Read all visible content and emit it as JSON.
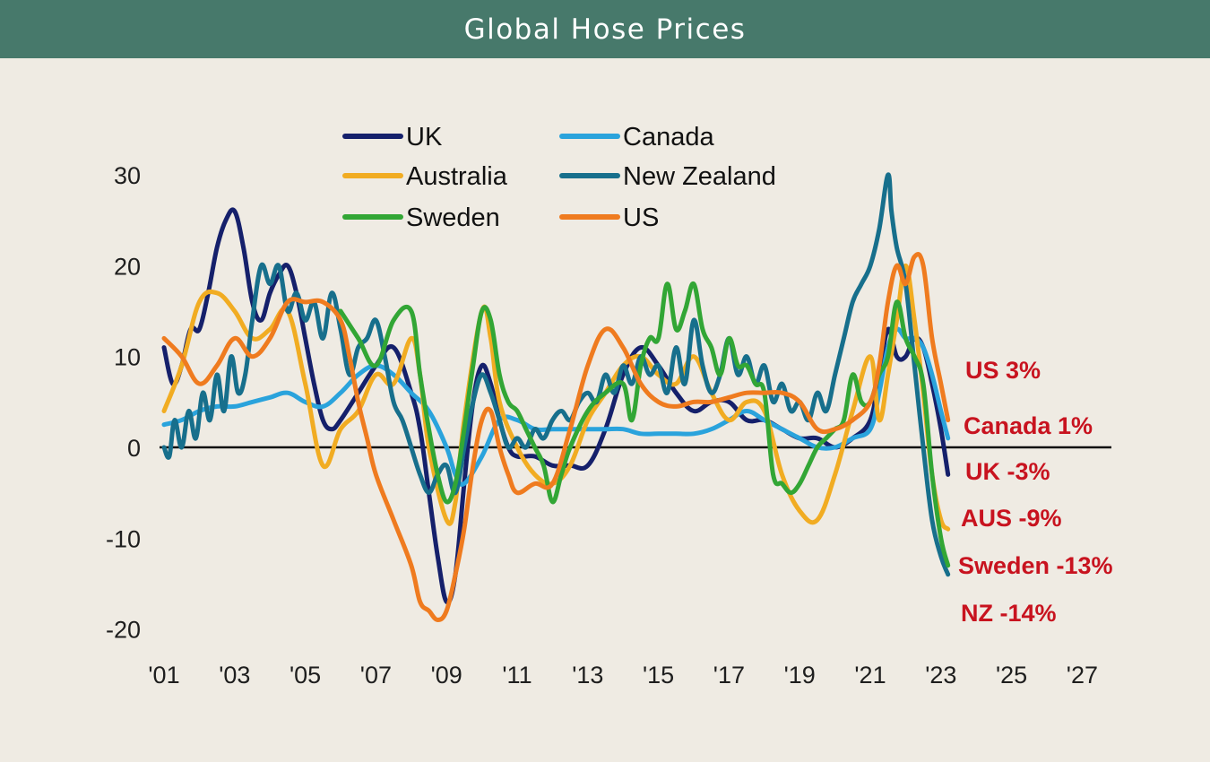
{
  "header": {
    "title": "Global Hose Prices"
  },
  "chart_data": {
    "type": "line",
    "title": "Global Hose Prices",
    "xlabel": "",
    "ylabel": "",
    "xlim": [
      2001,
      2027.5
    ],
    "ylim": [
      -20,
      30
    ],
    "yticks": [
      30,
      20,
      10,
      0,
      -10,
      -20
    ],
    "ytick_labels": [
      "30",
      "20",
      "10",
      "0",
      "-10",
      "-20"
    ],
    "xticks": [
      2001,
      2003,
      2005,
      2007,
      2009,
      2011,
      2013,
      2015,
      2017,
      2019,
      2021,
      2023,
      2025,
      2027
    ],
    "xtick_labels": [
      "'01",
      "'03",
      "'05",
      "'07",
      "'09",
      "'11",
      "'13",
      "'15",
      "'17",
      "'19",
      "'21",
      "'23",
      "'25",
      "'27"
    ],
    "grid": false,
    "zero_line": true,
    "legend": {
      "placement": "top-center",
      "columns": 2
    },
    "series": [
      {
        "name": "UK",
        "color": "#15206b",
        "x": [
          2001.0,
          2001.25,
          2001.5,
          2001.75,
          2002.0,
          2002.25,
          2002.5,
          2002.75,
          2003.0,
          2003.25,
          2003.5,
          2003.75,
          2004.0,
          2004.25,
          2004.5,
          2004.75,
          2005.0,
          2005.25,
          2005.5,
          2005.75,
          2006.0,
          2006.5,
          2007.0,
          2007.5,
          2008.0,
          2008.25,
          2008.5,
          2008.75,
          2009.0,
          2009.25,
          2009.5,
          2009.75,
          2010.0,
          2010.25,
          2010.5,
          2010.75,
          2011.0,
          2011.5,
          2012.0,
          2012.5,
          2013.0,
          2013.5,
          2014.0,
          2014.5,
          2015.0,
          2015.5,
          2016.0,
          2016.5,
          2017.0,
          2017.5,
          2018.0,
          2018.5,
          2019.0,
          2019.5,
          2020.0,
          2020.5,
          2021.0,
          2021.25,
          2021.5,
          2021.75,
          2022.0,
          2022.25,
          2022.5,
          2022.75,
          2023.0,
          2023.2
        ],
        "values": [
          11,
          7,
          9,
          13,
          13,
          17,
          22,
          25,
          26,
          22,
          16,
          14,
          17,
          19,
          20,
          17,
          12,
          7,
          3,
          2,
          3,
          6,
          9,
          11,
          6,
          2,
          -5,
          -12,
          -17,
          -14,
          -4,
          5,
          9,
          7,
          3,
          0,
          -1,
          -1,
          -2,
          -2,
          -2,
          2,
          8,
          11,
          9,
          6,
          4,
          5,
          5,
          3,
          3,
          2,
          1,
          1,
          0,
          1,
          3,
          8,
          13,
          10,
          10,
          12,
          11,
          7,
          2,
          -3
        ]
      },
      {
        "name": "Canada",
        "color": "#2aa3dc",
        "x": [
          2001.0,
          2001.5,
          2002.0,
          2002.5,
          2003.0,
          2003.5,
          2004.0,
          2004.5,
          2005.0,
          2005.5,
          2006.0,
          2006.5,
          2007.0,
          2007.5,
          2008.0,
          2008.5,
          2009.0,
          2009.25,
          2009.5,
          2010.0,
          2010.5,
          2011.0,
          2011.5,
          2012.0,
          2012.5,
          2013.0,
          2013.5,
          2014.0,
          2014.5,
          2015.0,
          2015.5,
          2016.0,
          2016.5,
          2017.0,
          2017.5,
          2018.0,
          2018.5,
          2019.0,
          2019.5,
          2020.0,
          2020.5,
          2021.0,
          2021.25,
          2021.5,
          2021.75,
          2022.0,
          2022.25,
          2022.5,
          2022.75,
          2023.0,
          2023.2
        ],
        "values": [
          2.5,
          3,
          4,
          4.5,
          4.5,
          5,
          5.5,
          6,
          5,
          4.5,
          6,
          8,
          9,
          8,
          6,
          4,
          0,
          -3,
          -4,
          -1,
          3,
          3,
          2,
          2,
          2,
          2,
          2,
          2,
          1.5,
          1.5,
          1.5,
          1.5,
          2,
          3,
          4,
          3,
          2,
          1,
          0,
          0,
          1,
          2,
          6,
          11,
          13,
          12,
          12,
          11,
          8,
          4,
          1
        ]
      },
      {
        "name": "Australia",
        "color": "#f1ac22",
        "x": [
          2001.0,
          2001.5,
          2002.0,
          2002.5,
          2003.0,
          2003.5,
          2004.0,
          2004.5,
          2005.0,
          2005.5,
          2006.0,
          2006.5,
          2007.0,
          2007.5,
          2008.0,
          2008.25,
          2008.5,
          2009.0,
          2009.25,
          2009.5,
          2010.0,
          2010.25,
          2010.5,
          2011.0,
          2011.5,
          2012.0,
          2012.5,
          2013.0,
          2013.5,
          2014.0,
          2014.5,
          2015.0,
          2015.5,
          2016.0,
          2016.5,
          2017.0,
          2017.5,
          2018.0,
          2018.5,
          2019.0,
          2019.5,
          2020.0,
          2020.5,
          2021.0,
          2021.25,
          2021.5,
          2021.75,
          2022.0,
          2022.25,
          2022.5,
          2022.75,
          2023.0,
          2023.2
        ],
        "values": [
          4,
          9,
          16,
          17,
          15,
          12,
          13,
          15,
          7,
          -2,
          2,
          4,
          8,
          7,
          12,
          8,
          0,
          -8,
          -6,
          3,
          15,
          12,
          5,
          0,
          -3,
          -4,
          -2,
          3,
          6,
          9,
          10,
          8,
          7,
          10,
          6,
          3,
          5,
          4,
          -3,
          -7,
          -8,
          -3,
          4,
          10,
          3,
          8,
          14,
          20,
          14,
          6,
          -3,
          -8,
          -9
        ]
      },
      {
        "name": "New Zealand",
        "color": "#176f8c",
        "x": [
          2001.0,
          2001.15,
          2001.3,
          2001.5,
          2001.7,
          2001.9,
          2002.1,
          2002.3,
          2002.5,
          2002.7,
          2002.9,
          2003.1,
          2003.3,
          2003.5,
          2003.75,
          2004.0,
          2004.25,
          2004.5,
          2004.75,
          2005.0,
          2005.25,
          2005.5,
          2005.75,
          2006.0,
          2006.25,
          2006.5,
          2006.75,
          2007.0,
          2007.25,
          2007.5,
          2007.75,
          2008.0,
          2008.25,
          2008.5,
          2008.75,
          2009.0,
          2009.25,
          2009.5,
          2009.75,
          2010.0,
          2010.25,
          2010.5,
          2010.75,
          2011.0,
          2011.25,
          2011.5,
          2011.75,
          2012.0,
          2012.25,
          2012.5,
          2012.75,
          2013.0,
          2013.25,
          2013.5,
          2013.75,
          2014.0,
          2014.25,
          2014.5,
          2014.75,
          2015.0,
          2015.25,
          2015.5,
          2015.75,
          2016.0,
          2016.25,
          2016.5,
          2016.75,
          2017.0,
          2017.25,
          2017.5,
          2017.75,
          2018.0,
          2018.25,
          2018.5,
          2018.75,
          2019.0,
          2019.25,
          2019.5,
          2019.75,
          2020.0,
          2020.25,
          2020.5,
          2020.75,
          2021.0,
          2021.25,
          2021.5,
          2021.6,
          2021.75,
          2022.0,
          2022.25,
          2022.5,
          2022.75,
          2023.0,
          2023.2
        ],
        "values": [
          0,
          -1,
          3,
          0,
          4,
          1,
          6,
          3,
          8,
          4,
          10,
          6,
          8,
          14,
          20,
          18,
          20,
          15,
          17,
          14,
          16,
          12,
          17,
          13,
          8,
          11,
          12,
          14,
          10,
          5,
          3,
          0,
          -3,
          -5,
          -3,
          -2,
          -5,
          0,
          5,
          8,
          6,
          3,
          0,
          1,
          0,
          2,
          1,
          3,
          4,
          3,
          5,
          6,
          5,
          8,
          6,
          9,
          7,
          10,
          8,
          9,
          6,
          11,
          7,
          14,
          9,
          6,
          8,
          12,
          8,
          10,
          7,
          9,
          5,
          7,
          4,
          5,
          3,
          6,
          4,
          8,
          12,
          16,
          18,
          20,
          24,
          30,
          26,
          22,
          18,
          9,
          0,
          -8,
          -12,
          -14
        ]
      },
      {
        "name": "Sweden",
        "color": "#32a635",
        "x": [
          2006.0,
          2006.5,
          2007.0,
          2007.5,
          2008.0,
          2008.25,
          2008.5,
          2008.75,
          2009.0,
          2009.25,
          2009.5,
          2009.75,
          2010.0,
          2010.25,
          2010.5,
          2010.75,
          2011.0,
          2011.25,
          2011.5,
          2011.75,
          2012.0,
          2012.25,
          2012.5,
          2013.0,
          2013.5,
          2014.0,
          2014.25,
          2014.5,
          2014.75,
          2015.0,
          2015.25,
          2015.5,
          2015.75,
          2016.0,
          2016.25,
          2016.5,
          2016.75,
          2017.0,
          2017.25,
          2017.5,
          2017.75,
          2018.0,
          2018.25,
          2018.5,
          2018.75,
          2019.0,
          2019.25,
          2019.5,
          2019.75,
          2020.0,
          2020.25,
          2020.5,
          2020.75,
          2021.0,
          2021.25,
          2021.5,
          2021.75,
          2022.0,
          2022.25,
          2022.5,
          2022.75,
          2023.0,
          2023.2
        ],
        "values": [
          15,
          12,
          9,
          14,
          15,
          8,
          2,
          -3,
          -6,
          -4,
          2,
          9,
          15,
          14,
          8,
          5,
          4,
          2,
          0,
          -2,
          -6,
          -3,
          0,
          4,
          6,
          7,
          3,
          9,
          12,
          12,
          18,
          13,
          15,
          18,
          13,
          11,
          8,
          12,
          9,
          9,
          7,
          6,
          -3,
          -4,
          -5,
          -4,
          -2,
          0,
          1,
          2,
          3,
          8,
          5,
          5,
          8,
          10,
          16,
          12,
          10,
          7,
          -3,
          -10,
          -13
        ]
      },
      {
        "name": "US",
        "color": "#ef7b1f",
        "x": [
          2001.0,
          2001.5,
          2002.0,
          2002.5,
          2003.0,
          2003.5,
          2004.0,
          2004.5,
          2005.0,
          2005.5,
          2006.0,
          2006.25,
          2006.5,
          2006.75,
          2007.0,
          2007.5,
          2008.0,
          2008.25,
          2008.5,
          2008.75,
          2009.0,
          2009.25,
          2009.5,
          2009.75,
          2010.0,
          2010.25,
          2010.5,
          2010.75,
          2011.0,
          2011.5,
          2012.0,
          2012.5,
          2013.0,
          2013.5,
          2014.0,
          2014.5,
          2015.0,
          2015.5,
          2016.0,
          2016.5,
          2017.0,
          2017.5,
          2018.0,
          2018.5,
          2019.0,
          2019.5,
          2020.0,
          2020.5,
          2021.0,
          2021.25,
          2021.5,
          2021.75,
          2022.0,
          2022.25,
          2022.5,
          2022.75,
          2023.0,
          2023.2
        ],
        "values": [
          12,
          10,
          7,
          9,
          12,
          10,
          12,
          16,
          16,
          16,
          14,
          10,
          5,
          1,
          -3,
          -8,
          -13,
          -17,
          -18,
          -19,
          -18,
          -14,
          -9,
          -2,
          3,
          4,
          0,
          -3,
          -5,
          -4,
          -4,
          2,
          9,
          13,
          11,
          7,
          5,
          4.5,
          5,
          5,
          5.5,
          6,
          6,
          6,
          5,
          2,
          2,
          3,
          5,
          9,
          16,
          20,
          18,
          21,
          20,
          12,
          7,
          3
        ]
      }
    ],
    "end_labels": [
      {
        "text": "US 3%",
        "series": "US",
        "value": 3
      },
      {
        "text": "Canada 1%",
        "series": "Canada",
        "value": 1
      },
      {
        "text": "UK -3%",
        "series": "UK",
        "value": -3
      },
      {
        "text": "AUS -9%",
        "series": "Australia",
        "value": -9
      },
      {
        "text": "Sweden -13%",
        "series": "Sweden",
        "value": -13
      },
      {
        "text": "NZ -14%",
        "series": "New Zealand",
        "value": -14
      }
    ],
    "end_label_color": "#c8131f"
  }
}
